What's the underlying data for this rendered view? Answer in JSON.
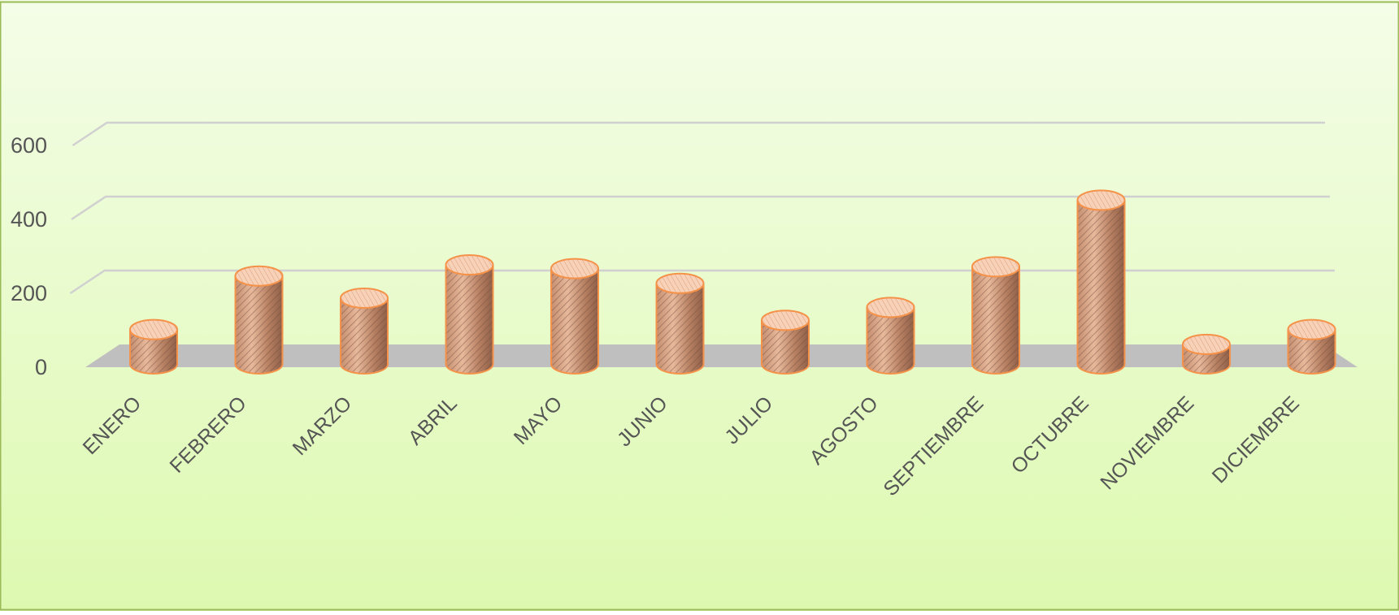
{
  "chart_data": {
    "type": "bar",
    "style": "3d-cylinder",
    "categories": [
      "ENERO",
      "FEBRERO",
      "MARZO",
      "ABRIL",
      "MAYO",
      "JUNIO",
      "JULIO",
      "AGOSTO",
      "SEPTIEMBRE",
      "OCTUBRE",
      "NOVIEMBRE",
      "DICIEMBRE"
    ],
    "values": [
      115,
      260,
      200,
      290,
      280,
      240,
      140,
      175,
      285,
      465,
      75,
      115
    ],
    "ylim": [
      0,
      600
    ],
    "yticks": [
      "0",
      "200",
      "400",
      "600"
    ],
    "grid": true,
    "legend": "none"
  },
  "colors": {
    "background_top": "#f4fde8",
    "background_bottom": "#ddf9b0",
    "frame": "#9bbb59",
    "gridline": "#d0d0d0",
    "floor": "#bfbfbf",
    "bar_fill": "#d9a07f",
    "bar_outline": "#f5924a",
    "bar_top": "#f8d2b8",
    "hatch": "#6e4a3a",
    "label": "#555555"
  }
}
